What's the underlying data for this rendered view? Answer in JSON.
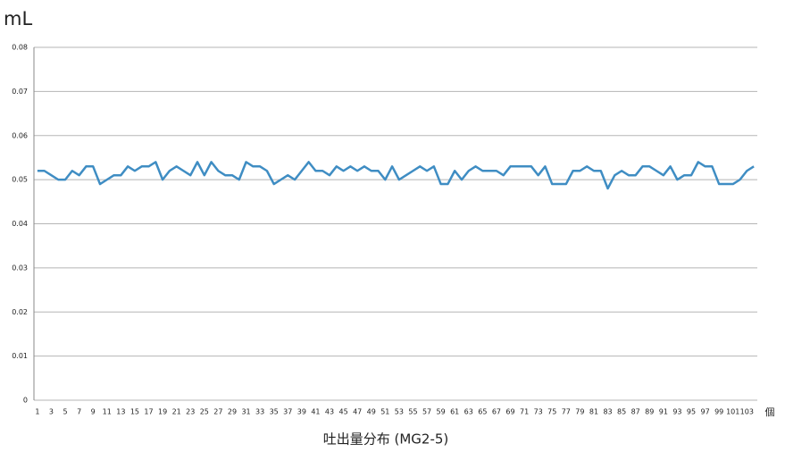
{
  "chart_data": {
    "type": "line",
    "title": "吐出量分布 (MG2-5)",
    "y_label": "mL",
    "x_label": "個",
    "categories": [
      "1",
      null,
      "3",
      null,
      "5",
      null,
      "7",
      null,
      "9",
      null,
      "11",
      null,
      "13",
      null,
      "15",
      null,
      "17",
      null,
      "19",
      null,
      "21",
      null,
      "23",
      null,
      "25",
      null,
      "27",
      null,
      "29",
      null,
      "31",
      null,
      "33",
      null,
      "35",
      null,
      "37",
      null,
      "39",
      null,
      "41",
      null,
      "43",
      null,
      "45",
      null,
      "47",
      null,
      "49",
      null,
      "51",
      null,
      "53",
      null,
      "55",
      null,
      "57",
      null,
      "59",
      null,
      "61",
      null,
      "63",
      null,
      "65",
      null,
      "67",
      null,
      "69",
      null,
      "71",
      null,
      "73",
      null,
      "75",
      null,
      "77",
      null,
      "79",
      null,
      "81",
      null,
      "83",
      null,
      "85",
      null,
      "87",
      null,
      "89",
      null,
      "91",
      null,
      "93",
      null,
      "95",
      null,
      "97",
      null,
      "99",
      null,
      "101",
      null,
      "103",
      null
    ],
    "series": [
      {
        "color": "#3f8dc3",
        "values": [
          0.052,
          0.052,
          0.051,
          0.05,
          0.05,
          0.052,
          0.051,
          0.053,
          0.053,
          0.049,
          0.05,
          0.051,
          0.051,
          0.053,
          0.052,
          0.053,
          0.053,
          0.054,
          0.05,
          0.052,
          0.053,
          0.052,
          0.051,
          0.054,
          0.051,
          0.054,
          0.052,
          0.051,
          0.051,
          0.05,
          0.054,
          0.053,
          0.053,
          0.052,
          0.049,
          0.05,
          0.051,
          0.05,
          0.052,
          0.054,
          0.052,
          0.052,
          0.051,
          0.053,
          0.052,
          0.053,
          0.052,
          0.053,
          0.052,
          0.052,
          0.05,
          0.053,
          0.05,
          0.051,
          0.052,
          0.053,
          0.052,
          0.053,
          0.049,
          0.049,
          0.052,
          0.05,
          0.052,
          0.053,
          0.052,
          0.052,
          0.052,
          0.051,
          0.053,
          0.053,
          0.053,
          0.053,
          0.051,
          0.053,
          0.049,
          0.049,
          0.049,
          0.052,
          0.052,
          0.053,
          0.052,
          0.052,
          0.048,
          0.051,
          0.052,
          0.051,
          0.051,
          0.053,
          0.053,
          0.052,
          0.051,
          0.053,
          0.05,
          0.051,
          0.051,
          0.054,
          0.053,
          0.053,
          0.049,
          0.049,
          0.049,
          0.05,
          0.052,
          0.053
        ]
      }
    ],
    "ylim": [
      0,
      0.08
    ],
    "yticks": [
      0,
      0.01,
      0.02,
      0.03,
      0.04,
      0.05,
      0.06,
      0.07,
      0.08
    ],
    "grid": true
  }
}
